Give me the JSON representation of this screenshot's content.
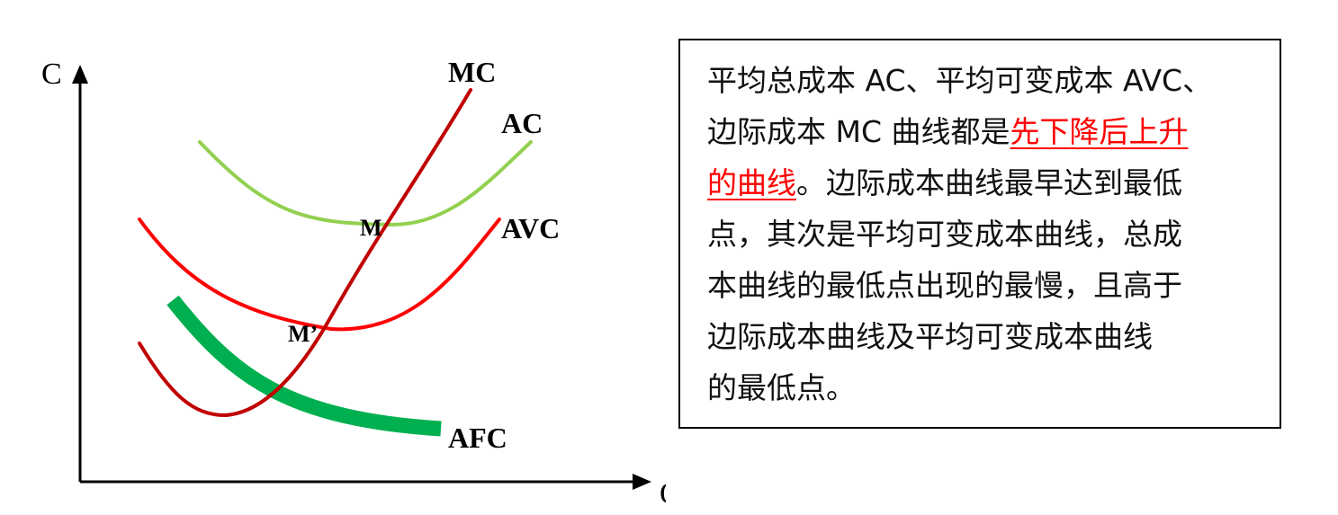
{
  "axes": {
    "y_label": "C",
    "x_label": "Q"
  },
  "curves": {
    "mc": {
      "label": "MC",
      "color": "#c00000"
    },
    "ac": {
      "label": "AC",
      "color": "#92d050"
    },
    "avc": {
      "label": "AVC",
      "color": "#ff0000"
    },
    "afc": {
      "label": "AFC",
      "color": "#00b050"
    }
  },
  "points": {
    "m": "M",
    "m_prime": "M’"
  },
  "note": {
    "lines": [
      {
        "before": "平均总成本 AC、平均可变成本 AVC、",
        "highlight": "",
        "after": ""
      },
      {
        "before": "边际成本 MC 曲线都是",
        "highlight": "先下降后上升",
        "after": ""
      },
      {
        "before": "",
        "highlight": "的曲线",
        "after": "。边际成本曲线最早达到最低"
      },
      {
        "before": "点，其次是平均可变成本曲线，总成",
        "highlight": "",
        "after": ""
      },
      {
        "before": "本曲线的最低点出现的最慢，且高于",
        "highlight": "",
        "after": ""
      },
      {
        "before": "边际成本曲线及平均可变成本曲线",
        "highlight": "",
        "after": ""
      },
      {
        "before": "的最低点。",
        "highlight": "",
        "after": ""
      }
    ]
  }
}
